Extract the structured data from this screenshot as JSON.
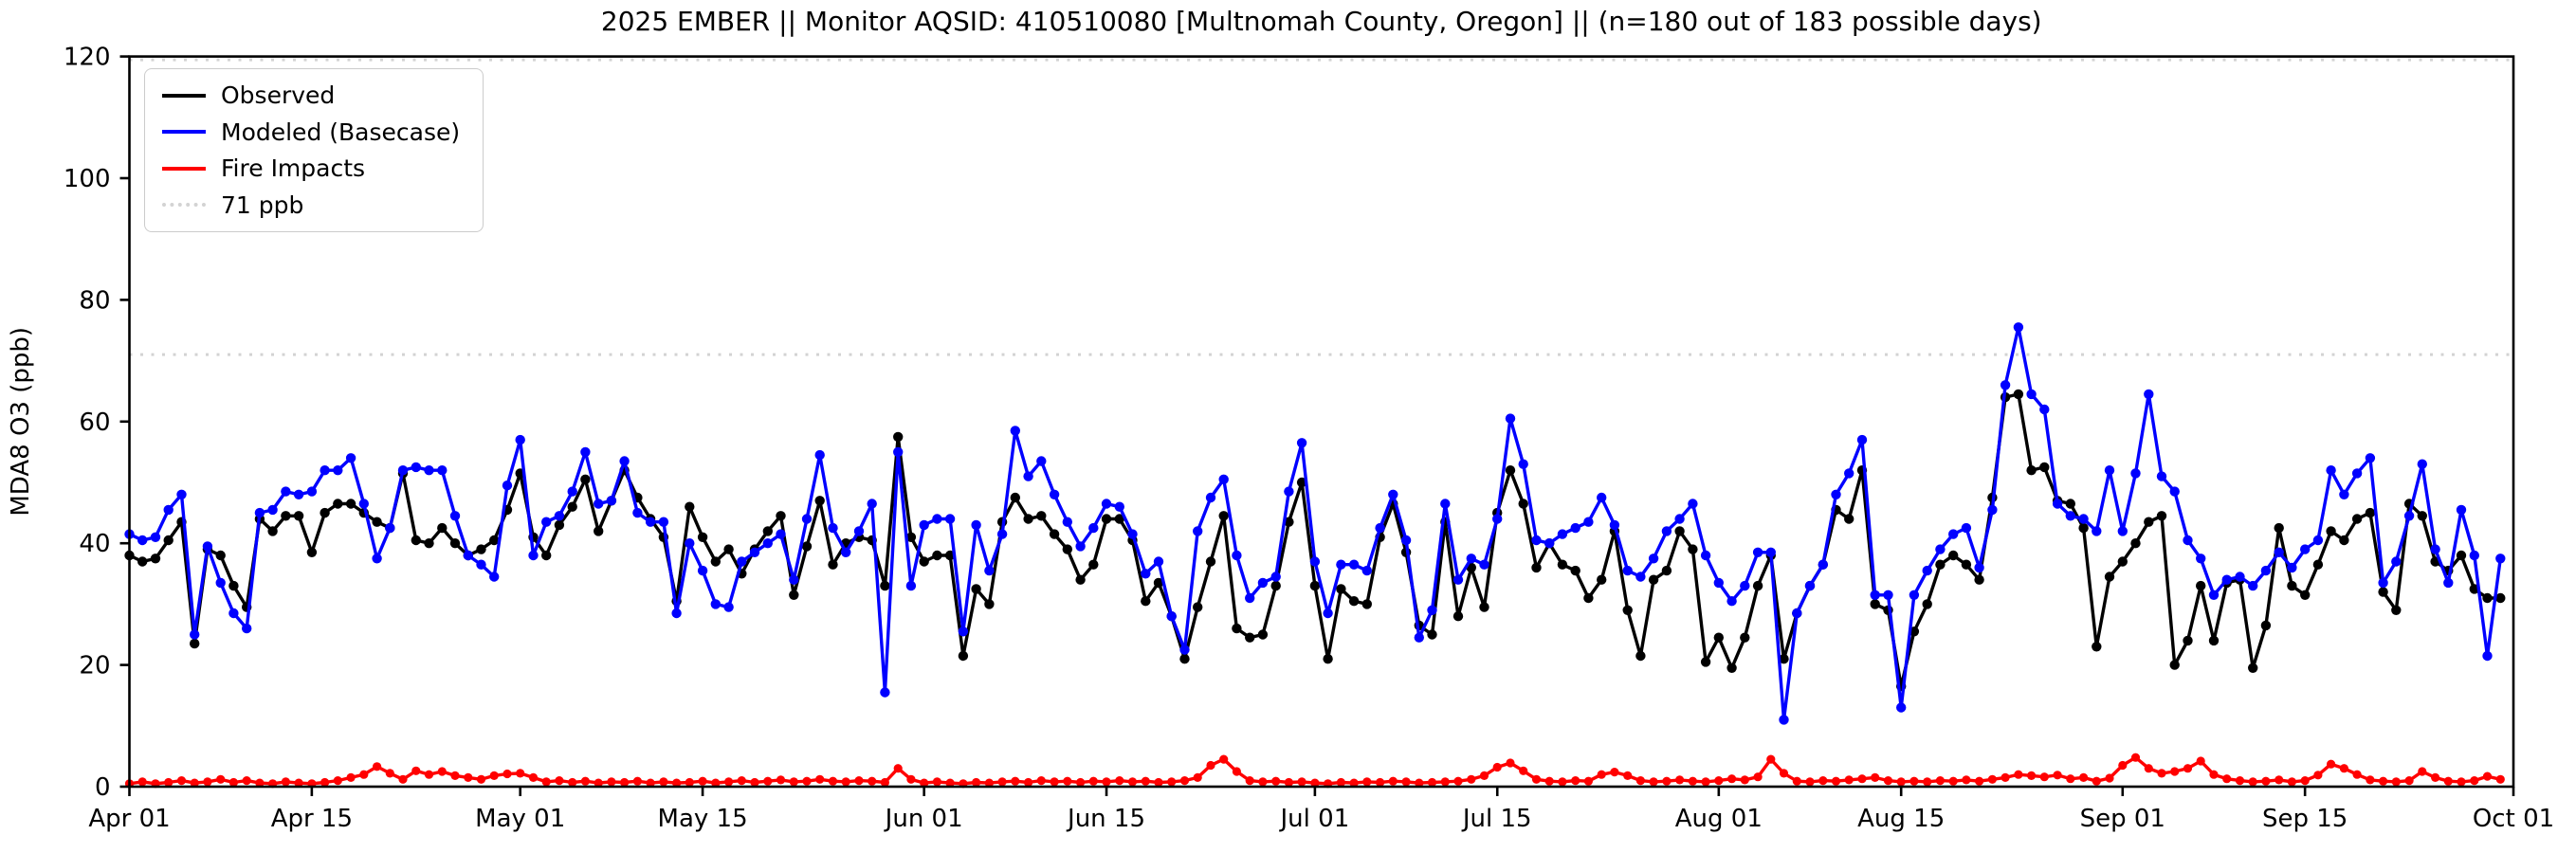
{
  "page": {
    "title": "2025 EMBER || Monitor AQSID: 410510080 [Multnomah County, Oregon] || (n=180 out of 183 possible days)"
  },
  "chart_data": {
    "type": "line",
    "title": "2025 EMBER || Monitor AQSID: 410510080 [Multnomah County, Oregon] || (n=180 out of 183 possible days)",
    "xlabel": "",
    "ylabel": "MDA8 O3 (ppb)",
    "ylim": [
      0,
      120
    ],
    "yticks": [
      0,
      20,
      40,
      60,
      80,
      100,
      120
    ],
    "x_tick_labels": [
      "Apr 01",
      "Apr 15",
      "May 01",
      "May 15",
      "Jun 01",
      "Jun 15",
      "Jul 01",
      "Jul 15",
      "Aug 01",
      "Aug 15",
      "Sep 01",
      "Sep 15",
      "Oct 01"
    ],
    "x_tick_days": [
      0,
      14,
      30,
      44,
      61,
      75,
      91,
      105,
      122,
      136,
      153,
      167,
      183
    ],
    "n_days": 183,
    "date_range": "Apr 01 - Oct 01",
    "grid": false,
    "legend_position": "upper left",
    "reference_lines": [
      {
        "value": 71,
        "label": "71 ppb",
        "color": "#d3d3d3",
        "style": "dotted"
      },
      {
        "value": 120,
        "label": "",
        "color": "#d3d3d3",
        "style": "dotted"
      }
    ],
    "series": [
      {
        "name": "Observed",
        "color": "#000000",
        "marker": "circle",
        "values": [
          38,
          37,
          37.5,
          40.5,
          43.5,
          23.5,
          39,
          38,
          33,
          29.5,
          44,
          42,
          44.5,
          44.5,
          38.5,
          45,
          46.5,
          46.5,
          45,
          43.5,
          42.5,
          51.5,
          40.5,
          40,
          42.5,
          40,
          38,
          39,
          40.5,
          45.5,
          51.5,
          41,
          38,
          43,
          46,
          50.5,
          42,
          47,
          52,
          47.5,
          44,
          41,
          30.5,
          46,
          41,
          37,
          39,
          35,
          39,
          42,
          44.5,
          31.5,
          39.5,
          47,
          36.5,
          40,
          41,
          40.5,
          33,
          57.5,
          41,
          37,
          38,
          38,
          21.5,
          32.5,
          30,
          43.5,
          47.5,
          44,
          44.5,
          41.5,
          39,
          34,
          36.5,
          44,
          44,
          40.5,
          30.5,
          33.5,
          28,
          21,
          29.5,
          37,
          44.5,
          26,
          24.5,
          25,
          33,
          43.5,
          50,
          33,
          21,
          32.5,
          30.5,
          30,
          41,
          46.5,
          38.5,
          26.5,
          25,
          43.5,
          28,
          36,
          29.5,
          45,
          52,
          46.5,
          36,
          40,
          36.5,
          35.5,
          31,
          34,
          42,
          29,
          21.5,
          34,
          35.5,
          42,
          39,
          20.5,
          24.5,
          19.5,
          24.5,
          33,
          38,
          21,
          28.5,
          33,
          36.5,
          45.5,
          44,
          52,
          30,
          29,
          16.5,
          25.5,
          30,
          36.5,
          38,
          36.5,
          34,
          47.5,
          64,
          64.5,
          52,
          52.5,
          47,
          46.5,
          42.5,
          23,
          34.5,
          37,
          40,
          43.5,
          44.5,
          20,
          24,
          33,
          24,
          33.5,
          34,
          19.5,
          26.5,
          42.5,
          33,
          31.5,
          36.5,
          42,
          40.5,
          44,
          45,
          32,
          29,
          46.5,
          44.5,
          37,
          35.5,
          38,
          32.5,
          31,
          31
        ]
      },
      {
        "name": "Modeled (Basecase)",
        "color": "#0000ff",
        "marker": "circle",
        "values": [
          41.5,
          40.5,
          41,
          45.5,
          48,
          25,
          39.5,
          33.5,
          28.5,
          26,
          45,
          45.5,
          48.5,
          48,
          48.5,
          52,
          52,
          54,
          46.5,
          37.5,
          42.5,
          52,
          52.5,
          52,
          52,
          44.5,
          38,
          36.5,
          34.5,
          49.5,
          57,
          38,
          43.5,
          44.5,
          48.5,
          55,
          46.5,
          47,
          53.5,
          45,
          43.5,
          43.5,
          28.5,
          40,
          35.5,
          30,
          29.5,
          37,
          38.5,
          40,
          41.5,
          34,
          44,
          54.5,
          42.5,
          38.5,
          42,
          46.5,
          15.5,
          55,
          33,
          43,
          44,
          44,
          25.5,
          43,
          35.5,
          41.5,
          58.5,
          51,
          53.5,
          48,
          43.5,
          39.5,
          42.5,
          46.5,
          46,
          41.5,
          35,
          37,
          28,
          22.5,
          42,
          47.5,
          50.5,
          38,
          31,
          33.5,
          34.5,
          48.5,
          56.5,
          37,
          28.5,
          36.5,
          36.5,
          35.5,
          42.5,
          48,
          40.5,
          24.5,
          29,
          46.5,
          34,
          37.5,
          36.5,
          44,
          60.5,
          53,
          40.5,
          40,
          41.5,
          42.5,
          43.5,
          47.5,
          43,
          35.5,
          34.5,
          37.5,
          42,
          44,
          46.5,
          38,
          33.5,
          30.5,
          33,
          38.5,
          38.5,
          11,
          28.5,
          33,
          36.5,
          48,
          51.5,
          57,
          31.5,
          31.5,
          13,
          31.5,
          35.5,
          39,
          41.5,
          42.5,
          36,
          45.5,
          66,
          75.5,
          64.5,
          62,
          46.5,
          44.5,
          44,
          42,
          52,
          42,
          51.5,
          64.5,
          51,
          48.5,
          40.5,
          37.5,
          31.5,
          34,
          34.5,
          33,
          35.5,
          38.5,
          36,
          39,
          40.5,
          52,
          48,
          51.5,
          54,
          33.5,
          37,
          44.5,
          53,
          39,
          33.5,
          45.5,
          38,
          21.5,
          37.5
        ]
      },
      {
        "name": "Fire Impacts",
        "color": "#ff0000",
        "marker": "circle",
        "values": [
          0.5,
          0.8,
          0.5,
          0.7,
          1.0,
          0.6,
          0.8,
          1.2,
          0.7,
          1.0,
          0.6,
          0.5,
          0.8,
          0.6,
          0.5,
          0.7,
          1.0,
          1.5,
          2.0,
          3.3,
          2.2,
          1.2,
          2.6,
          2.0,
          2.5,
          1.8,
          1.5,
          1.2,
          1.8,
          2.1,
          2.2,
          1.5,
          0.8,
          1.0,
          0.7,
          0.9,
          0.6,
          0.8,
          0.7,
          0.9,
          0.6,
          0.8,
          0.6,
          0.7,
          0.9,
          0.6,
          0.8,
          1.0,
          0.7,
          0.9,
          1.1,
          0.8,
          0.9,
          1.2,
          0.9,
          0.8,
          1.0,
          0.9,
          0.7,
          3.0,
          1.2,
          0.6,
          0.8,
          0.6,
          0.5,
          0.7,
          0.6,
          0.8,
          0.9,
          0.7,
          1.0,
          0.8,
          0.9,
          0.7,
          0.9,
          0.8,
          1.0,
          0.8,
          0.9,
          0.7,
          0.8,
          1.0,
          1.5,
          3.5,
          4.5,
          2.5,
          1.0,
          0.8,
          0.9,
          0.7,
          0.8,
          0.6,
          0.5,
          0.7,
          0.6,
          0.8,
          0.7,
          0.9,
          0.8,
          0.6,
          0.7,
          0.8,
          0.9,
          1.2,
          1.8,
          3.2,
          3.9,
          2.6,
          1.2,
          0.9,
          0.8,
          1.0,
          0.9,
          2.0,
          2.4,
          1.8,
          1.0,
          0.8,
          0.9,
          1.1,
          0.9,
          0.8,
          1.0,
          1.3,
          1.1,
          1.6,
          4.5,
          2.2,
          0.9,
          0.8,
          1.0,
          0.9,
          1.1,
          1.3,
          1.5,
          1.0,
          0.8,
          0.9,
          0.8,
          1.0,
          0.9,
          1.1,
          0.9,
          1.2,
          1.5,
          2.0,
          1.8,
          1.6,
          1.9,
          1.3,
          1.5,
          0.9,
          1.4,
          3.5,
          4.8,
          3.0,
          2.2,
          2.5,
          3.0,
          4.2,
          2.0,
          1.3,
          1.0,
          0.8,
          0.9,
          1.1,
          0.8,
          1.0,
          1.9,
          3.7,
          3.0,
          2.0,
          1.1,
          0.9,
          0.8,
          1.0,
          2.5,
          1.5,
          0.9,
          0.8,
          1.0,
          1.7,
          1.2
        ]
      }
    ]
  }
}
